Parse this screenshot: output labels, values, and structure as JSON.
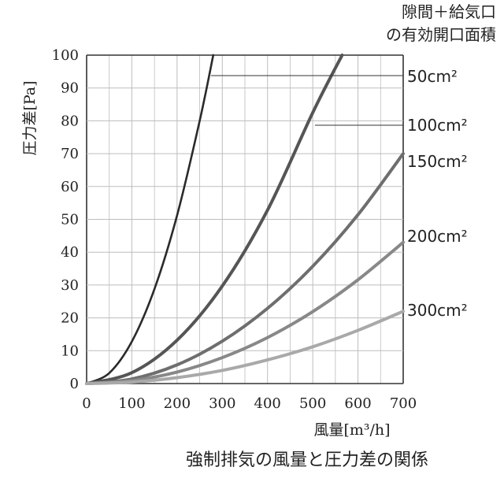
{
  "chart_data": {
    "type": "line",
    "title": "強制排気の風量と圧力差の関係",
    "xlabel": "風量[m³/h]",
    "ylabel": "圧力差[Pa]",
    "xlim": [
      0,
      700
    ],
    "ylim": [
      0,
      100
    ],
    "x_ticks": [
      "0",
      "100",
      "200",
      "300",
      "400",
      "500",
      "600",
      "700"
    ],
    "y_ticks": [
      "0",
      "10",
      "20",
      "30",
      "40",
      "50",
      "60",
      "70",
      "80",
      "90",
      "100"
    ],
    "grid": true,
    "legend_title": [
      "隙間＋給気口",
      "の有効開口面積"
    ],
    "series": [
      {
        "name": "50cm²",
        "color": "#2a2a2a",
        "x": [
          0,
          50,
          100,
          150,
          200,
          250,
          280
        ],
        "y": [
          0,
          3.2,
          12.8,
          28.8,
          51.2,
          80,
          100
        ]
      },
      {
        "name": "100cm²",
        "color": "#555555",
        "x": [
          0,
          100,
          200,
          300,
          400,
          500,
          565
        ],
        "y": [
          0,
          3.3,
          13.2,
          29.7,
          52.8,
          82.5,
          100
        ]
      },
      {
        "name": "150cm²",
        "color": "#6e6e6e",
        "x": [
          0,
          100,
          200,
          300,
          400,
          500,
          600,
          700
        ],
        "y": [
          0,
          1.4,
          5.7,
          12.9,
          22.9,
          35.7,
          51.4,
          70
        ]
      },
      {
        "name": "200cm²",
        "color": "#888888",
        "x": [
          0,
          100,
          200,
          300,
          400,
          500,
          600,
          700
        ],
        "y": [
          0,
          0.9,
          3.5,
          7.9,
          14.0,
          21.9,
          31.6,
          43
        ]
      },
      {
        "name": "300cm²",
        "color": "#a9a9a9",
        "x": [
          0,
          100,
          200,
          300,
          400,
          500,
          600,
          700
        ],
        "y": [
          0,
          0.45,
          1.8,
          4.0,
          7.2,
          11.2,
          16.2,
          22
        ]
      }
    ]
  }
}
